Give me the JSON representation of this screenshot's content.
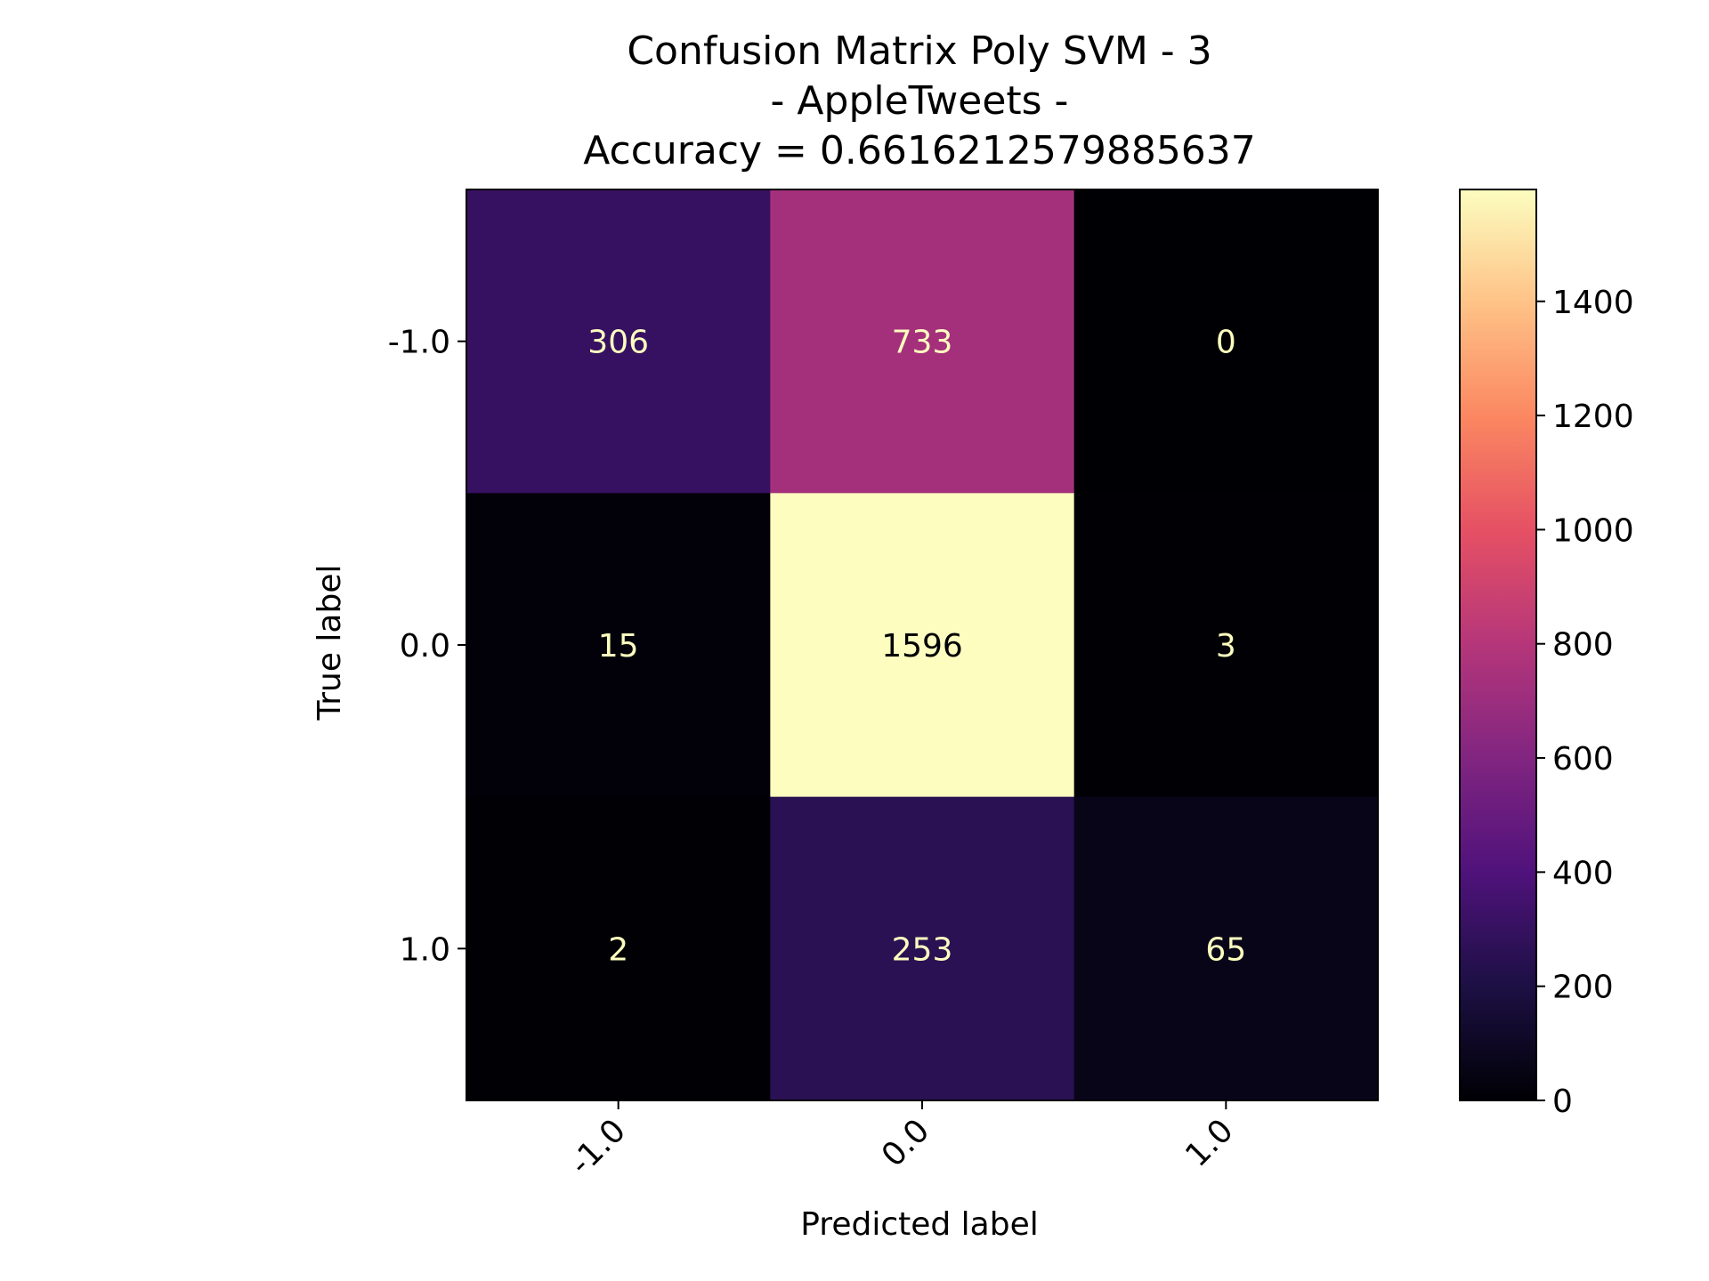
{
  "chart_data": {
    "type": "heatmap",
    "title_lines": [
      "Confusion Matrix Poly SVM - 3",
      "- AppleTweets -",
      "Accuracy = 0.6616212579885637"
    ],
    "xlabel": "Predicted label",
    "ylabel": "True label",
    "x_categories": [
      "-1.0",
      "0.0",
      "1.0"
    ],
    "y_categories": [
      "-1.0",
      "0.0",
      "1.0"
    ],
    "values": [
      [
        306,
        733,
        0
      ],
      [
        15,
        1596,
        3
      ],
      [
        2,
        253,
        65
      ]
    ],
    "colormap": "magma",
    "colorbar": {
      "range": [
        0,
        1596
      ],
      "ticks": [
        0,
        200,
        400,
        600,
        800,
        1000,
        1200,
        1400
      ]
    },
    "text_colors": {
      "light": "#fcfdbf",
      "dark": "#000004"
    }
  }
}
